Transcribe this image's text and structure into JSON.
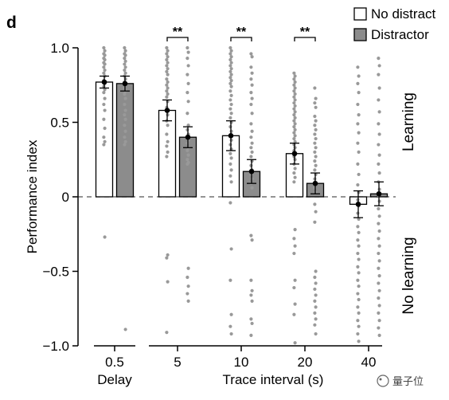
{
  "panel_label": "d",
  "watermark": "量子位",
  "chart_data": {
    "type": "bar",
    "ylabel": "Performance index",
    "xlabel": "Trace interval (s)",
    "delay_label": "Delay",
    "ylim": [
      -1.0,
      1.0
    ],
    "yticks": [
      {
        "value": 1.0,
        "label": "1.0"
      },
      {
        "value": 0.5,
        "label": "0.5"
      },
      {
        "value": 0,
        "label": "0"
      },
      {
        "value": -0.5,
        "label": "−0.5"
      },
      {
        "value": -1.0,
        "label": "−1.0"
      }
    ],
    "categories": [
      "0.5",
      "5",
      "10",
      "20",
      "40"
    ],
    "legend": {
      "position": "top-right",
      "entries": [
        {
          "name": "No distract",
          "color": "#ffffff"
        },
        {
          "name": "Distractor",
          "color": "#8c8c8c"
        }
      ]
    },
    "series": [
      {
        "name": "No distract",
        "color": "#ffffff",
        "values": [
          0.77,
          0.58,
          0.41,
          0.29,
          -0.05
        ],
        "error": [
          0.04,
          0.07,
          0.1,
          0.07,
          0.09
        ],
        "points": [
          [
            1.0,
            0.98,
            0.96,
            0.95,
            0.93,
            0.92,
            0.9,
            0.89,
            0.87,
            0.85,
            0.83,
            0.81,
            0.78,
            0.76,
            0.74,
            0.72,
            0.7,
            0.66,
            0.62,
            0.58,
            0.52,
            0.46,
            0.4,
            0.37,
            0.35,
            -0.27
          ],
          [
            1.0,
            0.98,
            0.96,
            0.94,
            0.92,
            0.9,
            0.88,
            0.86,
            0.84,
            0.82,
            0.79,
            0.77,
            0.75,
            0.73,
            0.71,
            0.69,
            0.67,
            0.64,
            0.6,
            0.55,
            0.51,
            0.48,
            0.42,
            0.37,
            0.34,
            0.3,
            0.27,
            -0.39,
            -0.41,
            -0.57,
            -0.91
          ],
          [
            1.0,
            0.98,
            0.96,
            0.94,
            0.92,
            0.9,
            0.88,
            0.86,
            0.84,
            0.82,
            0.8,
            0.78,
            0.76,
            0.74,
            0.71,
            0.68,
            0.65,
            0.62,
            0.59,
            0.56,
            0.53,
            0.5,
            0.47,
            0.44,
            0.41,
            0.38,
            0.35,
            0.32,
            0.29,
            0.26,
            0.22,
            0.18,
            0.14,
            0.1,
            -0.04,
            -0.35,
            -0.56,
            -0.79,
            -0.87,
            -0.92
          ],
          [
            0.83,
            0.81,
            0.79,
            0.77,
            0.75,
            0.73,
            0.71,
            0.69,
            0.67,
            0.65,
            0.63,
            0.61,
            0.59,
            0.57,
            0.55,
            0.53,
            0.51,
            0.49,
            0.47,
            0.45,
            0.43,
            0.41,
            0.39,
            0.37,
            0.35,
            0.33,
            0.31,
            0.29,
            0.27,
            0.25,
            0.22,
            0.19,
            0.16,
            0.13,
            0.1,
            -0.22,
            -0.28,
            -0.33,
            -0.38,
            -0.56,
            -0.61,
            -0.72,
            -0.79,
            -0.98
          ],
          [
            0.87,
            0.81,
            0.76,
            0.7,
            0.62,
            0.55,
            0.49,
            0.43,
            0.36,
            0.3,
            0.22,
            0.15,
            0.08,
            0.03,
            -0.02,
            -0.06,
            -0.11,
            -0.15,
            -0.2,
            -0.24,
            -0.29,
            -0.33,
            -0.38,
            -0.42,
            -0.47,
            -0.51,
            -0.56,
            -0.6,
            -0.65,
            -0.69,
            -0.74,
            -0.78,
            -0.83,
            -0.87,
            -0.92,
            -0.97
          ]
        ]
      },
      {
        "name": "Distractor",
        "color": "#8c8c8c",
        "values": [
          0.76,
          0.4,
          0.17,
          0.09,
          0.02
        ],
        "error": [
          0.05,
          0.07,
          0.08,
          0.07,
          0.08
        ],
        "points": [
          [
            1.0,
            0.98,
            0.96,
            0.95,
            0.93,
            0.91,
            0.89,
            0.87,
            0.85,
            0.83,
            0.81,
            0.79,
            0.77,
            0.75,
            0.73,
            0.71,
            0.69,
            0.66,
            0.62,
            0.58,
            0.55,
            0.52,
            0.48,
            0.44,
            0.4,
            0.37,
            0.35,
            -0.89
          ],
          [
            1.0,
            0.97,
            0.93,
            0.88,
            0.82,
            0.76,
            0.7,
            0.64,
            0.56,
            0.48,
            0.45,
            0.42,
            0.4,
            0.38,
            0.36,
            0.33,
            0.31,
            0.28,
            0.25,
            0.23,
            0.22,
            -0.48,
            -0.54,
            -0.6,
            -0.65,
            -0.7
          ],
          [
            0.96,
            0.94,
            0.87,
            0.83,
            0.79,
            0.75,
            0.7,
            0.66,
            0.62,
            0.56,
            0.49,
            0.44,
            0.4,
            0.36,
            0.33,
            0.3,
            0.27,
            0.24,
            0.21,
            0.18,
            0.15,
            0.12,
            0.09,
            0.06,
            -0.26,
            -0.29,
            -0.56,
            -0.63,
            -0.66,
            -0.7,
            -0.82,
            -0.85,
            -0.93
          ],
          [
            0.73,
            0.66,
            0.63,
            0.6,
            0.54,
            0.51,
            0.48,
            0.45,
            0.42,
            0.39,
            0.36,
            0.33,
            0.3,
            0.27,
            0.24,
            0.21,
            0.18,
            0.15,
            0.12,
            0.09,
            0.06,
            0.03,
            -0.05,
            -0.1,
            -0.17,
            -0.5,
            -0.54,
            -0.58,
            -0.62,
            -0.66,
            -0.7,
            -0.74,
            -0.78,
            -0.82,
            -0.86,
            -0.92
          ],
          [
            0.93,
            0.88,
            0.82,
            0.73,
            0.65,
            0.57,
            0.49,
            0.42,
            0.35,
            0.28,
            0.22,
            0.16,
            0.1,
            0.05,
            0.01,
            -0.03,
            -0.08,
            -0.13,
            -0.18,
            -0.23,
            -0.28,
            -0.33,
            -0.38,
            -0.43,
            -0.48,
            -0.53,
            -0.58,
            -0.63,
            -0.68,
            -0.73,
            -0.78,
            -0.83,
            -0.88,
            -0.93
          ]
        ]
      }
    ],
    "significance": [
      {
        "category": "5",
        "label": "**"
      },
      {
        "category": "10",
        "label": "**"
      },
      {
        "category": "20",
        "label": "**"
      }
    ],
    "region_labels": {
      "upper": "Learning",
      "lower": "No learning"
    },
    "grid": false,
    "zero_line": "dashed"
  }
}
